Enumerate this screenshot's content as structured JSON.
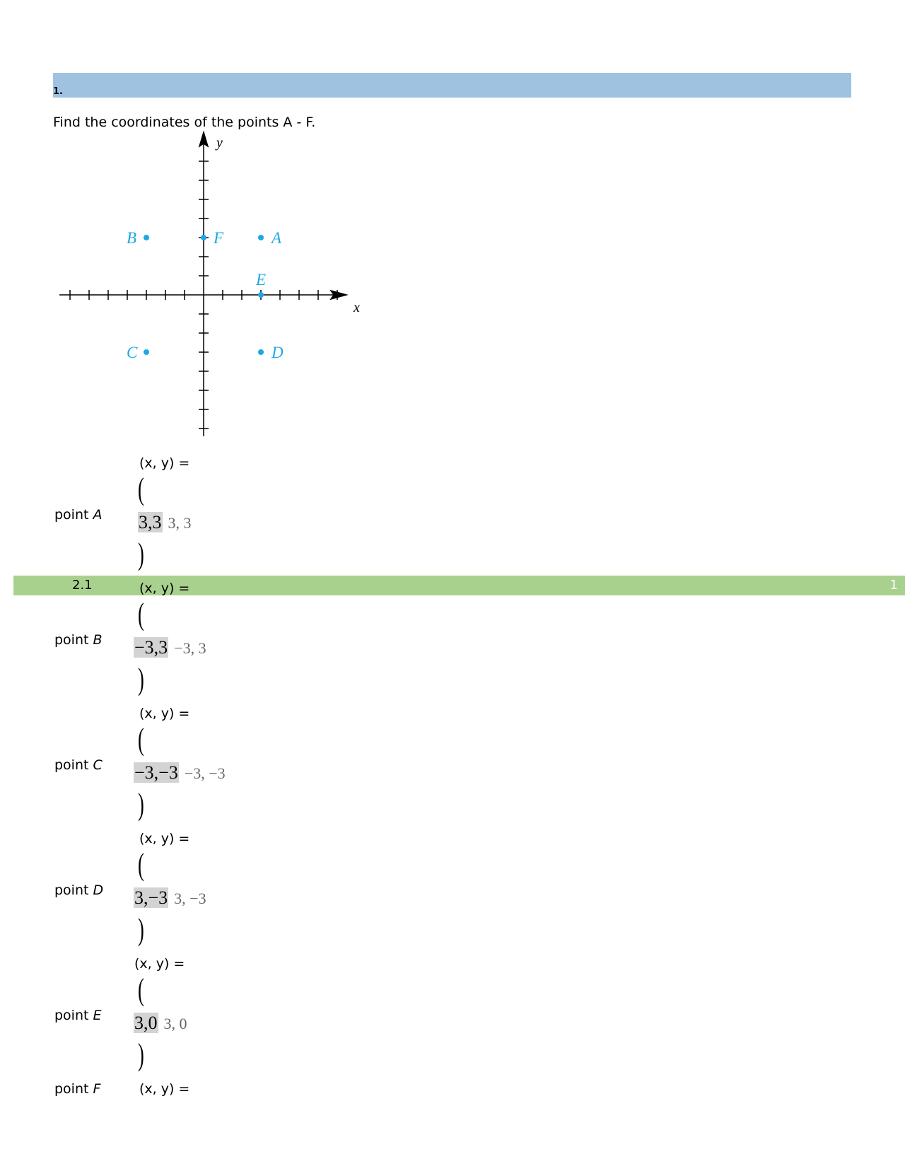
{
  "header": {
    "number": "1."
  },
  "question": "Find the coordinates of the points A - F.",
  "figure": {
    "axis_x": "x",
    "axis_y": "y",
    "points": [
      "A",
      "B",
      "C",
      "D",
      "E",
      "F"
    ]
  },
  "rows": [
    {
      "word": "point",
      "name": "A",
      "prompt": "(x, y) =",
      "open": "(",
      "answer": "3,3",
      "rendered": "3, 3",
      "close": ")"
    },
    {
      "word": "point",
      "name": "B",
      "prompt": "(x, y) =",
      "open": "(",
      "answer": "−3,3",
      "rendered": "−3, 3",
      "close": ")"
    },
    {
      "word": "point",
      "name": "C",
      "prompt": "(x, y) =",
      "open": "(",
      "answer": "−3,−3",
      "rendered": "−3, −3",
      "close": ")"
    },
    {
      "word": "point",
      "name": "D",
      "prompt": "(x, y) =",
      "open": "(",
      "answer": "3,−3",
      "rendered": "3, −3",
      "close": ")"
    },
    {
      "word": "point",
      "name": "E",
      "prompt": "(x, y) =",
      "open": "(",
      "answer": "3,0",
      "rendered": "3, 0",
      "close": ")"
    },
    {
      "word": "point",
      "name": "F",
      "prompt": "(x, y) ="
    }
  ],
  "footer_bar": {
    "section": "2.1",
    "page": "1"
  }
}
